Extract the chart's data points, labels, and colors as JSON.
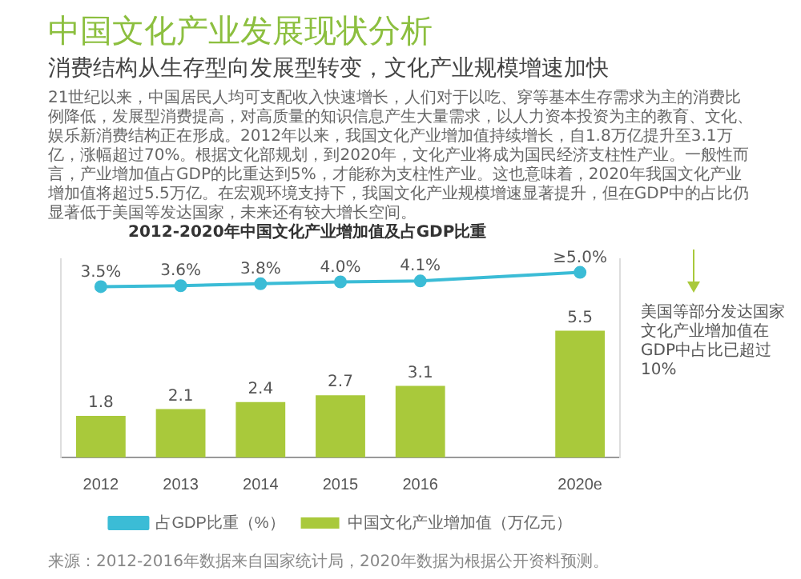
{
  "chart_data": {
    "type": "bar",
    "title": "中国文化产业发展现状分析",
    "subtitle": "消费结构从生存型向发展型转变，文化产业规模增速加快",
    "annotations": [
      "21世纪以来，中国居民人均可支配收入快速增长，人们对于以吃、穿等基本生存需求为主的消费比例降低，发展型消费提高，对高质量的知识信息产生大量需求，以人力资本投资为主的教育、文化、娱乐新消费结构正在形成。2012年以来，我国文化产业增加值持续增长，自1.8万亿提升至3.1万亿，涨幅超过70%。根据文化部规划，到2020年，文化产业将成为国民经济支柱性产业。一般性而言，产业增加值占GDP的比重达到5%，才能称为支柱性产业。这也意味着，2020年我国文化产业增加值将超过5.5万亿。在宏观环境支持下，我国文化产业规模增速显著提升，但在GDP中的占比仍显著低于美国等发达国家，未来还有较大增长空间。",
      "2012-2020年中国文化产业增加值及占GDP比重",
      "美国等部分发达国家文化产业增加值在GDP中占比已超过10%",
      "来源：2012-2016年数据来自国家统计局，2020年数据为根据公开资料预测。"
    ],
    "categories": [
      "2012",
      "2013",
      "2014",
      "2015",
      "2016",
      null,
      "2020e"
    ],
    "series": [
      {
        "name": "中国文化产业增加值（万亿元）",
        "type": "bar",
        "color": "#a9c93b",
        "values": [
          1.8,
          2.1,
          2.4,
          2.7,
          3.1,
          null,
          5.5
        ]
      },
      {
        "name": "占GDP比重（%）",
        "type": "line",
        "axis": "y2",
        "color": "#3bbcd6",
        "marker": "circle",
        "values": [
          3.5,
          3.6,
          3.8,
          4.0,
          4.1,
          null,
          5.0
        ],
        "value_labels": [
          "3.5%",
          "3.6%",
          "3.8%",
          "4.0%",
          "4.1%",
          null,
          "≥5.0%"
        ]
      }
    ],
    "ylim": [
      0,
      8.6
    ],
    "y2lim": [
      -14.5,
      6.4
    ],
    "data_labels": true,
    "tick_labels": "x",
    "grid": false,
    "legend": "bottom"
  }
}
